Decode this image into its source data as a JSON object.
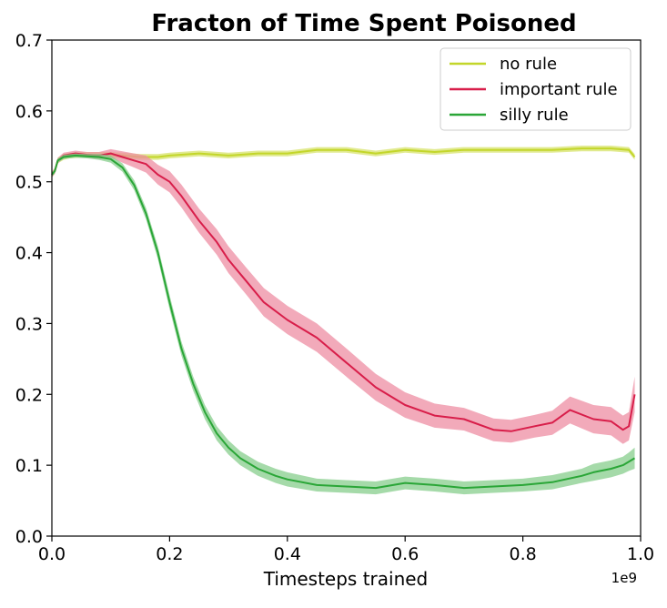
{
  "chart_data": {
    "type": "line",
    "title": "Fracton of Time Spent Poisoned",
    "xlabel": "Timesteps trained",
    "ylabel": "",
    "x_offset_label": "1e9",
    "xlim": [
      0,
      1.0
    ],
    "ylim": [
      0,
      0.7
    ],
    "x_ticks": [
      0.0,
      0.2,
      0.4,
      0.6,
      0.8,
      1.0
    ],
    "x_tick_labels": [
      "0.0",
      "0.2",
      "0.4",
      "0.6",
      "0.8",
      "1.0"
    ],
    "y_ticks": [
      0.0,
      0.1,
      0.2,
      0.3,
      0.4,
      0.5,
      0.6,
      0.7
    ],
    "y_tick_labels": [
      "0.0",
      "0.1",
      "0.2",
      "0.3",
      "0.4",
      "0.5",
      "0.6",
      "0.7"
    ],
    "grid": false,
    "legend_position": "top-right",
    "series": [
      {
        "name": "no rule",
        "color": "#c3d62a",
        "band_color": "#d7e36b",
        "x": [
          0.0,
          0.005,
          0.01,
          0.02,
          0.03,
          0.05,
          0.08,
          0.1,
          0.12,
          0.15,
          0.18,
          0.2,
          0.25,
          0.3,
          0.35,
          0.4,
          0.45,
          0.5,
          0.55,
          0.6,
          0.65,
          0.7,
          0.75,
          0.8,
          0.85,
          0.9,
          0.95,
          0.98,
          0.99
        ],
        "y": [
          0.51,
          0.515,
          0.53,
          0.535,
          0.537,
          0.538,
          0.538,
          0.538,
          0.537,
          0.535,
          0.535,
          0.537,
          0.54,
          0.537,
          0.54,
          0.54,
          0.545,
          0.545,
          0.54,
          0.545,
          0.542,
          0.545,
          0.545,
          0.545,
          0.545,
          0.547,
          0.547,
          0.545,
          0.535
        ],
        "band": [
          0.004,
          0.004,
          0.004,
          0.004,
          0.004,
          0.004,
          0.004,
          0.004,
          0.004,
          0.004,
          0.004,
          0.004,
          0.004,
          0.004,
          0.004,
          0.004,
          0.004,
          0.004,
          0.004,
          0.004,
          0.004,
          0.004,
          0.004,
          0.004,
          0.004,
          0.004,
          0.004,
          0.004,
          0.004
        ]
      },
      {
        "name": "important rule",
        "color": "#d81e4a",
        "band_color": "#ee8da3",
        "x": [
          0.0,
          0.005,
          0.01,
          0.02,
          0.04,
          0.06,
          0.08,
          0.1,
          0.12,
          0.14,
          0.16,
          0.18,
          0.2,
          0.22,
          0.25,
          0.28,
          0.3,
          0.33,
          0.36,
          0.4,
          0.45,
          0.5,
          0.55,
          0.6,
          0.65,
          0.7,
          0.75,
          0.78,
          0.82,
          0.85,
          0.88,
          0.92,
          0.95,
          0.97,
          0.98,
          0.99
        ],
        "y": [
          0.51,
          0.515,
          0.53,
          0.537,
          0.54,
          0.538,
          0.537,
          0.54,
          0.535,
          0.53,
          0.525,
          0.51,
          0.5,
          0.48,
          0.445,
          0.415,
          0.39,
          0.36,
          0.33,
          0.305,
          0.28,
          0.245,
          0.21,
          0.185,
          0.17,
          0.165,
          0.15,
          0.148,
          0.155,
          0.16,
          0.178,
          0.165,
          0.162,
          0.15,
          0.155,
          0.2
        ],
        "band": [
          0.004,
          0.004,
          0.004,
          0.004,
          0.004,
          0.004,
          0.005,
          0.006,
          0.008,
          0.01,
          0.012,
          0.014,
          0.015,
          0.016,
          0.017,
          0.018,
          0.019,
          0.019,
          0.02,
          0.02,
          0.02,
          0.02,
          0.019,
          0.018,
          0.017,
          0.016,
          0.016,
          0.016,
          0.016,
          0.017,
          0.019,
          0.02,
          0.02,
          0.02,
          0.02,
          0.025
        ]
      },
      {
        "name": "silly rule",
        "color": "#2aa637",
        "band_color": "#87cd8c",
        "x": [
          0.0,
          0.005,
          0.01,
          0.02,
          0.04,
          0.06,
          0.08,
          0.1,
          0.12,
          0.14,
          0.16,
          0.18,
          0.2,
          0.22,
          0.24,
          0.26,
          0.28,
          0.3,
          0.32,
          0.35,
          0.38,
          0.4,
          0.45,
          0.5,
          0.55,
          0.6,
          0.65,
          0.7,
          0.75,
          0.8,
          0.85,
          0.9,
          0.92,
          0.95,
          0.97,
          0.98,
          0.99
        ],
        "y": [
          0.51,
          0.515,
          0.53,
          0.535,
          0.537,
          0.536,
          0.535,
          0.532,
          0.52,
          0.495,
          0.455,
          0.4,
          0.33,
          0.265,
          0.215,
          0.175,
          0.145,
          0.125,
          0.11,
          0.095,
          0.085,
          0.08,
          0.072,
          0.07,
          0.068,
          0.075,
          0.072,
          0.068,
          0.07,
          0.072,
          0.076,
          0.085,
          0.09,
          0.095,
          0.1,
          0.105,
          0.11
        ],
        "band": [
          0.003,
          0.003,
          0.003,
          0.003,
          0.003,
          0.003,
          0.004,
          0.005,
          0.006,
          0.007,
          0.008,
          0.009,
          0.01,
          0.01,
          0.01,
          0.01,
          0.01,
          0.01,
          0.01,
          0.01,
          0.01,
          0.01,
          0.009,
          0.009,
          0.009,
          0.009,
          0.009,
          0.009,
          0.009,
          0.009,
          0.01,
          0.01,
          0.012,
          0.012,
          0.012,
          0.013,
          0.015
        ]
      }
    ]
  }
}
